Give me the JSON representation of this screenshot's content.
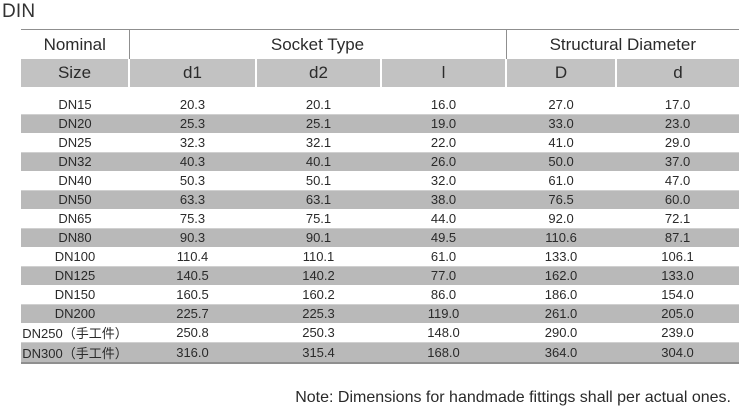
{
  "title": "DIN",
  "header_top": {
    "nominal": "Nominal",
    "socket_type": "Socket Type",
    "structural_diameter": "Structural Diameter"
  },
  "header_sub": {
    "size": "Size",
    "d1": "d1",
    "d2": "d2",
    "l": "l",
    "D": "D",
    "d": "d"
  },
  "rows": [
    {
      "size": "DN15",
      "d1": "20.3",
      "d2": "20.1",
      "l": "16.0",
      "D": "27.0",
      "d": "17.0"
    },
    {
      "size": "DN20",
      "d1": "25.3",
      "d2": "25.1",
      "l": "19.0",
      "D": "33.0",
      "d": "23.0"
    },
    {
      "size": "DN25",
      "d1": "32.3",
      "d2": "32.1",
      "l": "22.0",
      "D": "41.0",
      "d": "29.0"
    },
    {
      "size": "DN32",
      "d1": "40.3",
      "d2": "40.1",
      "l": "26.0",
      "D": "50.0",
      "d": "37.0"
    },
    {
      "size": "DN40",
      "d1": "50.3",
      "d2": "50.1",
      "l": "32.0",
      "D": "61.0",
      "d": "47.0"
    },
    {
      "size": "DN50",
      "d1": "63.3",
      "d2": "63.1",
      "l": "38.0",
      "D": "76.5",
      "d": "60.0"
    },
    {
      "size": "DN65",
      "d1": "75.3",
      "d2": "75.1",
      "l": "44.0",
      "D": "92.0",
      "d": "72.1"
    },
    {
      "size": "DN80",
      "d1": "90.3",
      "d2": "90.1",
      "l": "49.5",
      "D": "110.6",
      "d": "87.1"
    },
    {
      "size": "DN100",
      "d1": "110.4",
      "d2": "110.1",
      "l": "61.0",
      "D": "133.0",
      "d": "106.1"
    },
    {
      "size": "DN125",
      "d1": "140.5",
      "d2": "140.2",
      "l": "77.0",
      "D": "162.0",
      "d": "133.0"
    },
    {
      "size": "DN150",
      "d1": "160.5",
      "d2": "160.2",
      "l": "86.0",
      "D": "186.0",
      "d": "154.0"
    },
    {
      "size": "DN200",
      "d1": "225.7",
      "d2": "225.3",
      "l": "119.0",
      "D": "261.0",
      "d": "205.0"
    },
    {
      "size": "DN250（手工件）",
      "d1": "250.8",
      "d2": "250.3",
      "l": "148.0",
      "D": "290.0",
      "d": "239.0"
    },
    {
      "size": "DN300（手工件）",
      "d1": "316.0",
      "d2": "315.4",
      "l": "168.0",
      "D": "364.0",
      "d": "304.0"
    }
  ],
  "note": "Note: Dimensions for handmade fittings shall per actual ones.",
  "colors": {
    "header_gray": "#c2c2c2",
    "row_shade": "#b9b9b9",
    "rule": "#8f8f8f"
  }
}
